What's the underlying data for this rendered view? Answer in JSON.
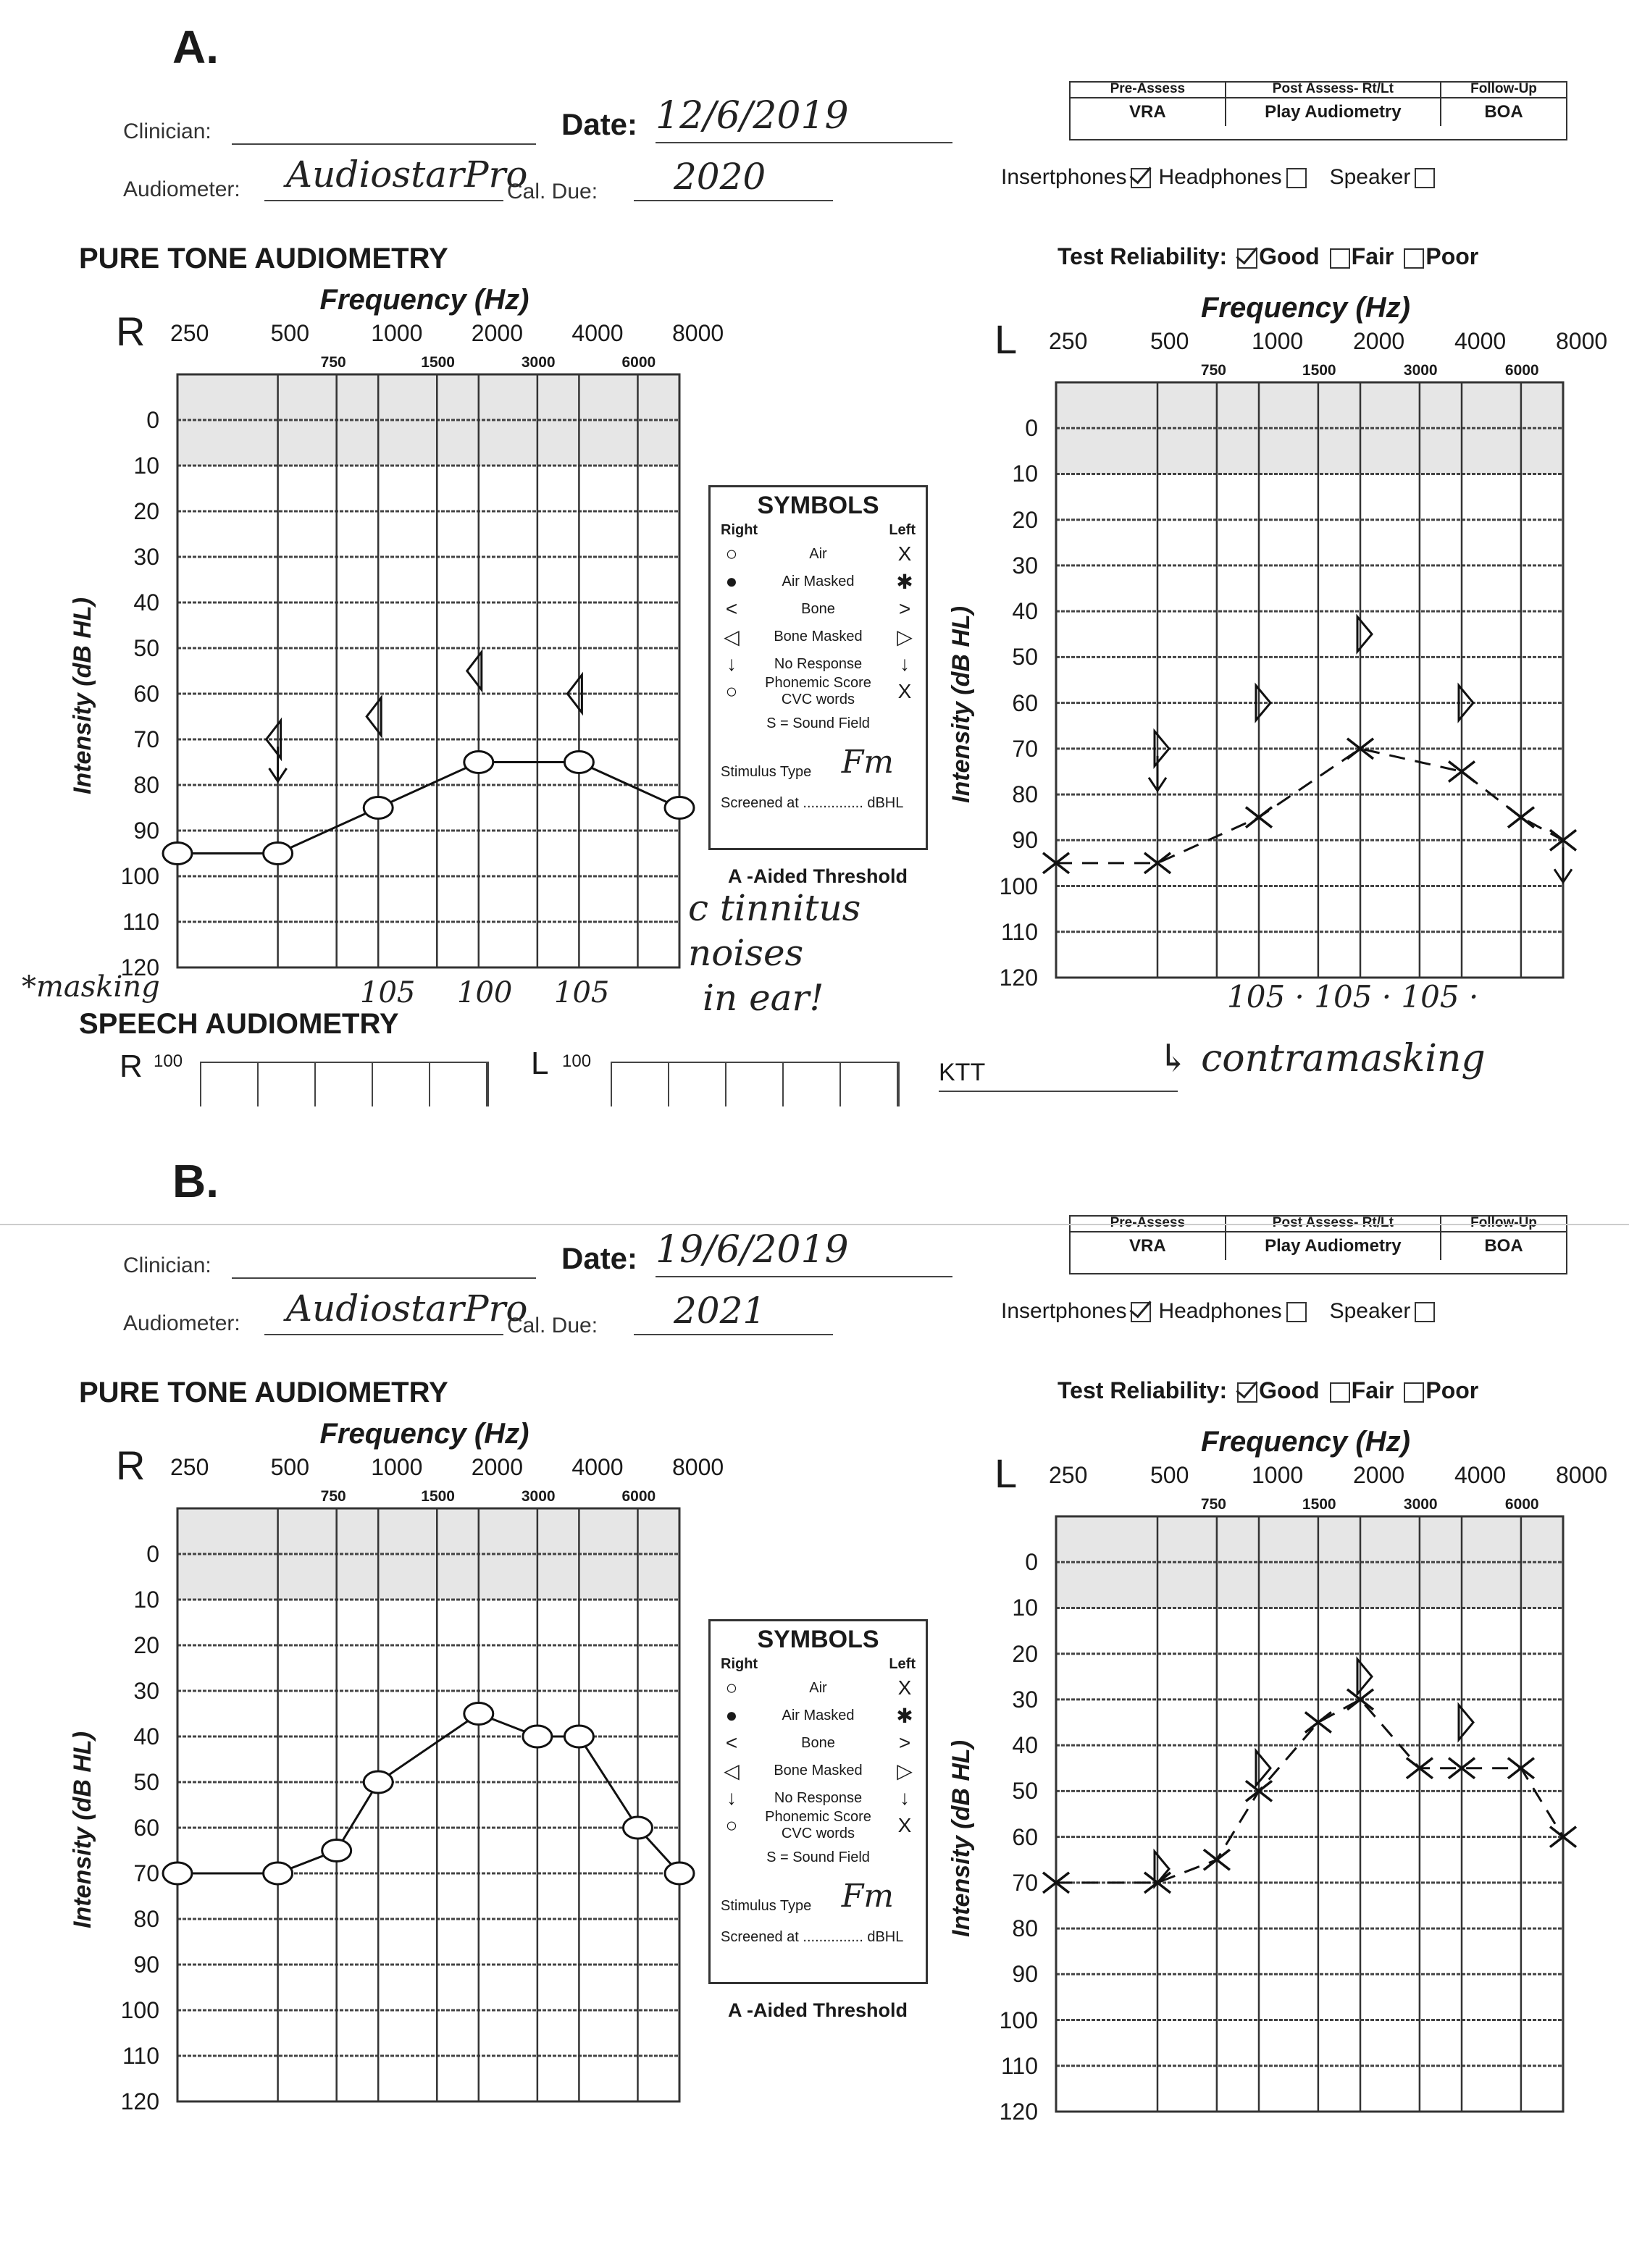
{
  "form": {
    "clinician_label": "Clinician:",
    "date_label": "Date:",
    "audiometer_label": "Audiometer:",
    "cal_due_label": "Cal. Due:",
    "header_row1": [
      "Pre-Assess",
      "Post Assess- Rt/Lt",
      "Follow-Up"
    ],
    "header_row2": [
      "VRA",
      "Play Audiometry",
      "BOA"
    ],
    "transducers": [
      "Insertphones",
      "Headphones",
      "Speaker"
    ],
    "section_title": "PURE TONE AUDIOMETRY",
    "reliability_label": "Test Reliability:",
    "reliability_options": [
      "Good",
      "Fair",
      "Poor"
    ],
    "freq_title": "Frequency  (Hz)",
    "ear_right": "R",
    "ear_left": "L",
    "y_title": "Intensity  (dB HL)",
    "speech_title": "SPEECH AUDIOMETRY",
    "speech_r": "R",
    "speech_l": "L",
    "speech_level": "100",
    "ktt": "KTT",
    "aided": "A -Aided Threshold"
  },
  "legend": {
    "title": "SYMBOLS",
    "right": "Right",
    "left": "Left",
    "rows": [
      {
        "label": "Air",
        "r": "○",
        "l": "X"
      },
      {
        "label": "Air Masked",
        "r": "●",
        "l": "✱"
      },
      {
        "label": "Bone",
        "r": "<",
        "l": ">"
      },
      {
        "label": "Bone Masked",
        "r": "◁",
        "l": "▷"
      },
      {
        "label": "No Response",
        "r": "↓",
        "l": "↓"
      },
      {
        "label": "Phonemic Score CVC words",
        "r": "○",
        "l": "X"
      }
    ],
    "sound_field": "S  =  Sound Field",
    "stimulus_label": "Stimulus Type",
    "screened_label": "Screened at ............... dBHL"
  },
  "panels": [
    {
      "letter": "A.",
      "date": "12/6/2019",
      "audiometer": "AudiostarPro",
      "cal_due": "2020",
      "stimulus": "Fm",
      "transducer_checked": "Insertphones",
      "reliability_checked": "Good",
      "notes": {
        "masking": "*masking",
        "r_levels": [
          "105",
          "100",
          "105"
        ],
        "tinnitus": [
          "c tinnitus",
          "noises",
          "in ear!"
        ],
        "l_levels": "105 · 105 · 105 ·",
        "contramasking": "↳ contramasking"
      }
    },
    {
      "letter": "B.",
      "date": "19/6/2019",
      "audiometer": "AudiostarPro",
      "cal_due": "2021",
      "stimulus": "Fm",
      "transducer_checked": "Insertphones",
      "reliability_checked": "Good"
    }
  ],
  "chart_data": [
    {
      "panel": "A",
      "ear": "Right",
      "type": "line",
      "title": "Frequency (Hz)",
      "xlabel": "Frequency (Hz)",
      "ylabel": "Intensity (dB HL)",
      "x_major": [
        "250",
        "500",
        "1000",
        "2000",
        "4000",
        "8000"
      ],
      "x_minor": [
        "750",
        "1500",
        "3000",
        "6000"
      ],
      "yticks": [
        "0",
        "10",
        "20",
        "30",
        "40",
        "50",
        "60",
        "70",
        "80",
        "90",
        "100",
        "110",
        "120"
      ],
      "ylim": [
        -10,
        120
      ],
      "y_inverted": true,
      "series": [
        {
          "name": "Air",
          "symbol": "circle",
          "points": [
            [
              250,
              95
            ],
            [
              500,
              95
            ],
            [
              1000,
              85
            ],
            [
              2000,
              75
            ],
            [
              4000,
              75
            ],
            [
              8000,
              85
            ]
          ]
        },
        {
          "name": "Bone Masked",
          "symbol": "tri-left",
          "points": [
            [
              500,
              70,
              "NR"
            ],
            [
              1000,
              65
            ],
            [
              2000,
              55
            ],
            [
              4000,
              60
            ]
          ]
        }
      ]
    },
    {
      "panel": "A",
      "ear": "Left",
      "type": "line",
      "title": "Frequency (Hz)",
      "xlabel": "Frequency (Hz)",
      "ylabel": "Intensity (dB HL)",
      "x_major": [
        "250",
        "500",
        "1000",
        "2000",
        "4000",
        "8000"
      ],
      "x_minor": [
        "750",
        "1500",
        "3000",
        "6000"
      ],
      "yticks": [
        "0",
        "10",
        "20",
        "30",
        "40",
        "50",
        "60",
        "70",
        "80",
        "90",
        "100",
        "110",
        "120"
      ],
      "ylim": [
        -10,
        120
      ],
      "y_inverted": true,
      "series": [
        {
          "name": "Air",
          "symbol": "x",
          "points": [
            [
              250,
              95
            ],
            [
              500,
              95
            ],
            [
              1000,
              85
            ],
            [
              2000,
              70
            ],
            [
              4000,
              75
            ],
            [
              6000,
              85
            ],
            [
              8000,
              90,
              "NR"
            ]
          ]
        },
        {
          "name": "Bone Masked",
          "symbol": "tri-right",
          "points": [
            [
              500,
              70,
              "NR"
            ],
            [
              1000,
              60
            ],
            [
              2000,
              45
            ],
            [
              4000,
              60
            ]
          ]
        }
      ]
    },
    {
      "panel": "B",
      "ear": "Right",
      "type": "line",
      "title": "Frequency (Hz)",
      "xlabel": "Frequency (Hz)",
      "ylabel": "Intensity (dB HL)",
      "x_major": [
        "250",
        "500",
        "1000",
        "2000",
        "4000",
        "8000"
      ],
      "x_minor": [
        "750",
        "1500",
        "3000",
        "6000"
      ],
      "yticks": [
        "0",
        "10",
        "20",
        "30",
        "40",
        "50",
        "60",
        "70",
        "80",
        "90",
        "100",
        "110",
        "120"
      ],
      "ylim": [
        -10,
        120
      ],
      "y_inverted": true,
      "series": [
        {
          "name": "Air",
          "symbol": "circle",
          "points": [
            [
              250,
              70
            ],
            [
              500,
              70
            ],
            [
              750,
              65
            ],
            [
              1000,
              50
            ],
            [
              2000,
              35
            ],
            [
              3000,
              40
            ],
            [
              4000,
              40
            ],
            [
              6000,
              60
            ],
            [
              8000,
              70
            ]
          ]
        }
      ]
    },
    {
      "panel": "B",
      "ear": "Left",
      "type": "line",
      "title": "Frequency (Hz)",
      "xlabel": "Frequency (Hz)",
      "ylabel": "Intensity (dB HL)",
      "x_major": [
        "250",
        "500",
        "1000",
        "2000",
        "4000",
        "8000"
      ],
      "x_minor": [
        "750",
        "1500",
        "3000",
        "6000"
      ],
      "yticks": [
        "0",
        "10",
        "20",
        "30",
        "40",
        "50",
        "60",
        "70",
        "80",
        "90",
        "100",
        "110",
        "120"
      ],
      "ylim": [
        -10,
        120
      ],
      "y_inverted": true,
      "series": [
        {
          "name": "Air",
          "symbol": "x",
          "points": [
            [
              250,
              70
            ],
            [
              500,
              70
            ],
            [
              750,
              65
            ],
            [
              1000,
              50
            ],
            [
              1500,
              35
            ],
            [
              2000,
              30
            ],
            [
              3000,
              45
            ],
            [
              4000,
              45
            ],
            [
              6000,
              45
            ],
            [
              8000,
              60
            ]
          ]
        },
        {
          "name": "Bone Masked",
          "symbol": "tri-right",
          "points": [
            [
              500,
              67
            ],
            [
              1000,
              45
            ],
            [
              2000,
              25
            ],
            [
              4000,
              35
            ]
          ]
        }
      ]
    }
  ]
}
